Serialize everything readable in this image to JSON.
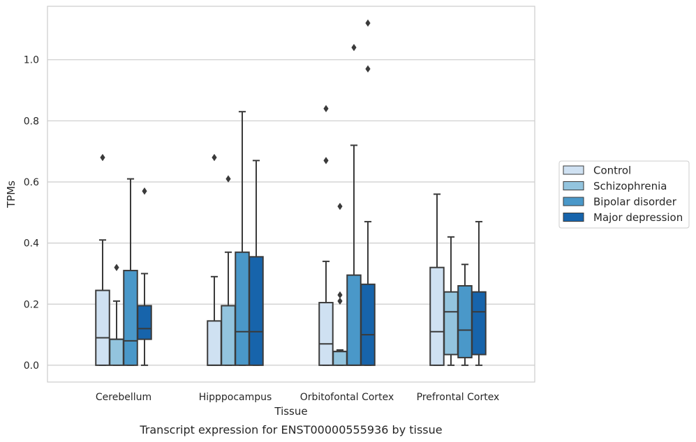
{
  "caption": "Transcript expression for ENST00000555936 by tissue",
  "colors": {
    "Control": "#cfe1f2",
    "Schizophrenia": "#93c4de",
    "Bipolar disorder": "#4a98c9",
    "Major depression": "#1764ab",
    "edge": "#3a3a3a",
    "grid": "#cccccc"
  },
  "chart_data": {
    "type": "box",
    "xlabel": "Tissue",
    "ylabel": "TPMs",
    "ylim": [
      -0.055,
      1.175
    ],
    "yticks": [
      0.0,
      0.2,
      0.4,
      0.6,
      0.8,
      1.0
    ],
    "ytick_labels": [
      "0.0",
      "0.2",
      "0.4",
      "0.6",
      "0.8",
      "1.0"
    ],
    "grid": "horizontal",
    "legend_position": "right",
    "categories": [
      "Cerebellum",
      "Hipppocampus",
      "Orbitofontal Cortex",
      "Prefrontal Cortex"
    ],
    "series": [
      {
        "name": "Control",
        "boxes": [
          {
            "whisker_low": 0.0,
            "q1": 0.0,
            "median": 0.09,
            "q3": 0.245,
            "whisker_high": 0.41,
            "outliers": [
              0.68
            ]
          },
          {
            "whisker_low": 0.0,
            "q1": 0.0,
            "median": 0.0,
            "q3": 0.145,
            "whisker_high": 0.29,
            "outliers": [
              0.68
            ]
          },
          {
            "whisker_low": 0.0,
            "q1": 0.0,
            "median": 0.07,
            "q3": 0.205,
            "whisker_high": 0.34,
            "outliers": [
              0.67,
              0.84
            ]
          },
          {
            "whisker_low": 0.0,
            "q1": 0.0,
            "median": 0.11,
            "q3": 0.32,
            "whisker_high": 0.56,
            "outliers": []
          }
        ]
      },
      {
        "name": "Schizophrenia",
        "boxes": [
          {
            "whisker_low": 0.0,
            "q1": 0.0,
            "median": 0.085,
            "q3": 0.085,
            "whisker_high": 0.21,
            "outliers": [
              0.32
            ]
          },
          {
            "whisker_low": 0.0,
            "q1": 0.0,
            "median": 0.195,
            "q3": 0.195,
            "whisker_high": 0.37,
            "outliers": [
              0.61
            ]
          },
          {
            "whisker_low": 0.0,
            "q1": 0.0,
            "median": 0.045,
            "q3": 0.045,
            "whisker_high": 0.05,
            "outliers": [
              0.21,
              0.23,
              0.52
            ]
          },
          {
            "whisker_low": 0.0,
            "q1": 0.035,
            "median": 0.175,
            "q3": 0.24,
            "whisker_high": 0.42,
            "outliers": []
          }
        ]
      },
      {
        "name": "Bipolar disorder",
        "boxes": [
          {
            "whisker_low": 0.0,
            "q1": 0.0,
            "median": 0.08,
            "q3": 0.31,
            "whisker_high": 0.61,
            "outliers": []
          },
          {
            "whisker_low": 0.0,
            "q1": 0.0,
            "median": 0.11,
            "q3": 0.37,
            "whisker_high": 0.83,
            "outliers": []
          },
          {
            "whisker_low": 0.0,
            "q1": 0.0,
            "median": 0.0,
            "q3": 0.295,
            "whisker_high": 0.72,
            "outliers": [
              1.04
            ]
          },
          {
            "whisker_low": 0.0,
            "q1": 0.025,
            "median": 0.115,
            "q3": 0.26,
            "whisker_high": 0.33,
            "outliers": []
          }
        ]
      },
      {
        "name": "Major depression",
        "boxes": [
          {
            "whisker_low": 0.0,
            "q1": 0.085,
            "median": 0.12,
            "q3": 0.195,
            "whisker_high": 0.3,
            "outliers": [
              0.57
            ]
          },
          {
            "whisker_low": 0.0,
            "q1": 0.0,
            "median": 0.11,
            "q3": 0.355,
            "whisker_high": 0.67,
            "outliers": []
          },
          {
            "whisker_low": 0.0,
            "q1": 0.0,
            "median": 0.1,
            "q3": 0.265,
            "whisker_high": 0.47,
            "outliers": [
              0.97,
              1.12
            ]
          },
          {
            "whisker_low": 0.0,
            "q1": 0.035,
            "median": 0.175,
            "q3": 0.24,
            "whisker_high": 0.47,
            "outliers": []
          }
        ]
      }
    ]
  }
}
